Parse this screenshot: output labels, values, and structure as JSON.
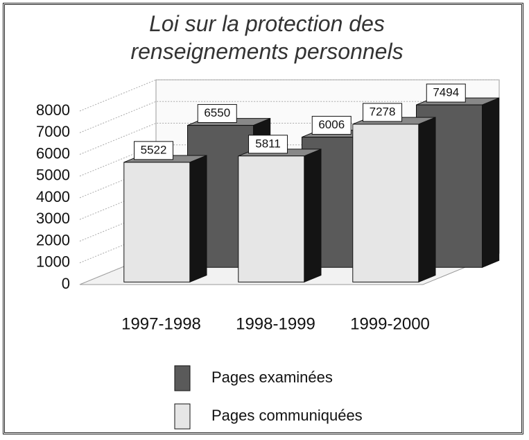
{
  "chart_data": {
    "type": "bar3d",
    "title": "Loi sur la protection des renseignements personnels",
    "categories": [
      "1997-1998",
      "1998-1999",
      "1999-2000"
    ],
    "series": [
      {
        "name": "Pages examinées",
        "color": "#5a5a5a",
        "values": [
          6550,
          6006,
          7494
        ]
      },
      {
        "name": "Pages communiquées",
        "color": "#e6e6e6",
        "values": [
          5522,
          5811,
          7278
        ]
      }
    ],
    "ylim": [
      0,
      8000
    ],
    "yticks": [
      0,
      1000,
      2000,
      3000,
      4000,
      5000,
      6000,
      7000,
      8000
    ],
    "grid": true
  }
}
